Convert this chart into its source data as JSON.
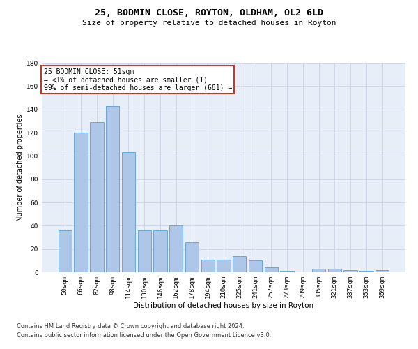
{
  "title": "25, BODMIN CLOSE, ROYTON, OLDHAM, OL2 6LD",
  "subtitle": "Size of property relative to detached houses in Royton",
  "xlabel": "Distribution of detached houses by size in Royton",
  "ylabel": "Number of detached properties",
  "categories": [
    "50sqm",
    "66sqm",
    "82sqm",
    "98sqm",
    "114sqm",
    "130sqm",
    "146sqm",
    "162sqm",
    "178sqm",
    "194sqm",
    "210sqm",
    "225sqm",
    "241sqm",
    "257sqm",
    "273sqm",
    "289sqm",
    "305sqm",
    "321sqm",
    "337sqm",
    "353sqm",
    "369sqm"
  ],
  "values": [
    36,
    120,
    129,
    143,
    103,
    36,
    36,
    40,
    26,
    11,
    11,
    14,
    10,
    4,
    1,
    0,
    3,
    3,
    2,
    1,
    2
  ],
  "bar_color": "#aec6e8",
  "bar_edge_color": "#5a9fd4",
  "annotation_text": "25 BODMIN CLOSE: 51sqm\n← <1% of detached houses are smaller (1)\n99% of semi-detached houses are larger (681) →",
  "annotation_box_color": "#c0392b",
  "ylim": [
    0,
    180
  ],
  "yticks": [
    0,
    20,
    40,
    60,
    80,
    100,
    120,
    140,
    160,
    180
  ],
  "grid_color": "#d0d8e8",
  "background_color": "#e8eef8",
  "footer_line1": "Contains HM Land Registry data © Crown copyright and database right 2024.",
  "footer_line2": "Contains public sector information licensed under the Open Government Licence v3.0.",
  "title_fontsize": 9.5,
  "subtitle_fontsize": 8,
  "xlabel_fontsize": 7.5,
  "ylabel_fontsize": 7,
  "tick_fontsize": 6.5,
  "annotation_fontsize": 7,
  "footer_fontsize": 6
}
